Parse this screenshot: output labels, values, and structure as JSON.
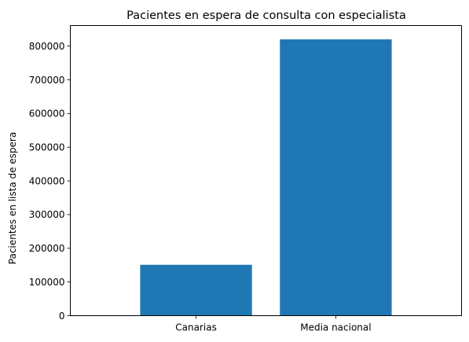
{
  "chart_data": {
    "type": "bar",
    "title": "Pacientes en espera de consulta con especialista",
    "xlabel": "",
    "ylabel": "Pacientes en lista de espera",
    "categories": [
      "Canarias",
      "Media nacional"
    ],
    "values": [
      151000,
      820000
    ],
    "ylim": [
      0,
      861000
    ],
    "yticks": [
      0,
      100000,
      200000,
      300000,
      400000,
      500000,
      600000,
      700000,
      800000
    ],
    "ytick_labels": [
      "0",
      "100000",
      "200000",
      "300000",
      "400000",
      "500000",
      "600000",
      "700000",
      "800000"
    ],
    "grid": false,
    "legend": "none",
    "bar_color": "#1f77b4"
  }
}
